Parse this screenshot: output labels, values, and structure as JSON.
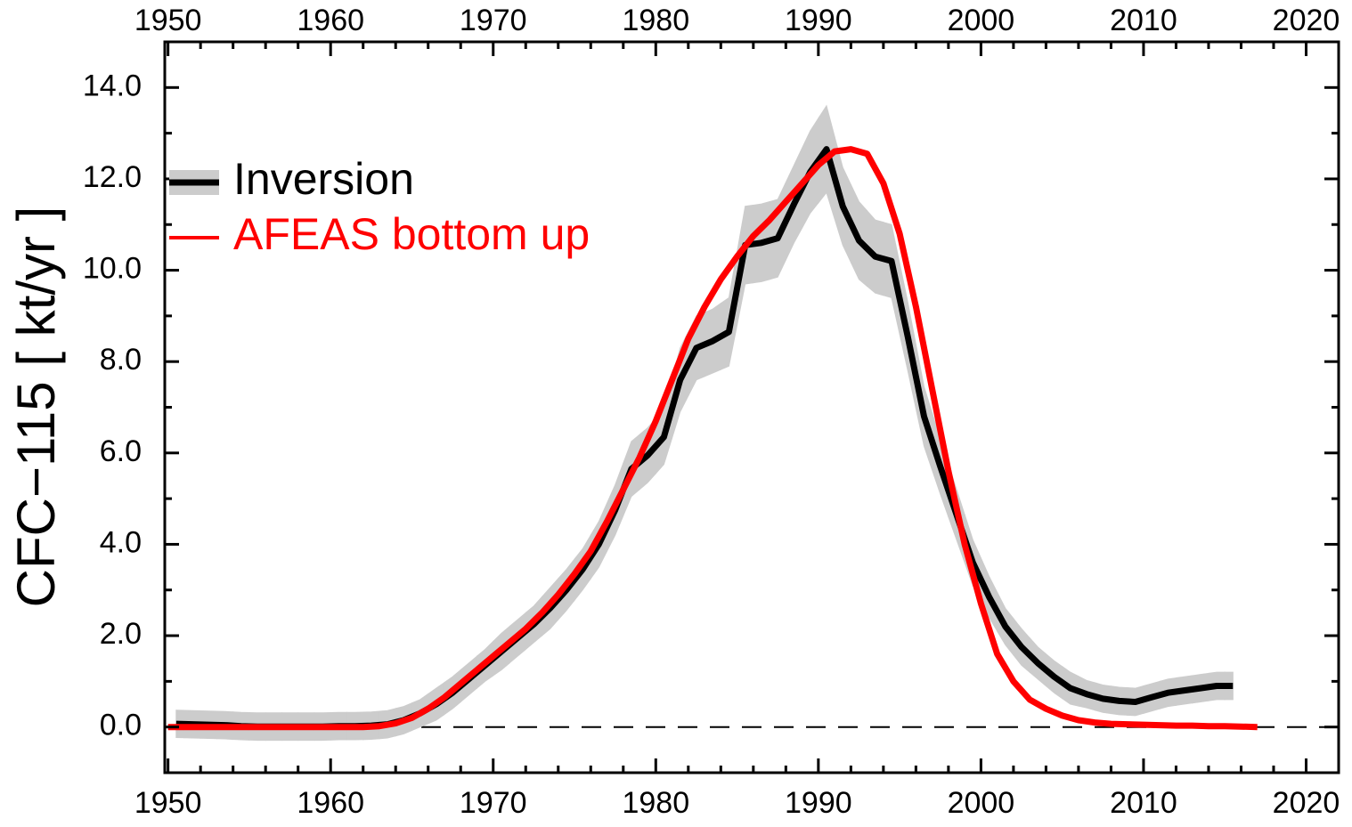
{
  "chart_data": {
    "type": "line",
    "ylabel": "CFC−115  [ kt/yr ]",
    "xlim": [
      1949.8,
      2022
    ],
    "ylim": [
      -1,
      15
    ],
    "xticks": [
      1950,
      1960,
      1970,
      1980,
      1990,
      2000,
      2010,
      2020
    ],
    "xticks_minor": [
      1952,
      1954,
      1956,
      1958,
      1962,
      1964,
      1966,
      1968,
      1972,
      1974,
      1976,
      1978,
      1982,
      1984,
      1986,
      1988,
      1992,
      1994,
      1996,
      1998,
      2002,
      2004,
      2006,
      2008,
      2012,
      2014,
      2016,
      2018
    ],
    "yticks": [
      {
        "value": 0,
        "label": "0.0"
      },
      {
        "value": 2,
        "label": "2.0"
      },
      {
        "value": 4,
        "label": "4.0"
      },
      {
        "value": 6,
        "label": "6.0"
      },
      {
        "value": 8,
        "label": "8.0"
      },
      {
        "value": 10,
        "label": "10.0"
      },
      {
        "value": 12,
        "label": "12.0"
      },
      {
        "value": 14,
        "label": "14.0"
      }
    ],
    "yticks_minor": [
      -1,
      1,
      3,
      5,
      7,
      9,
      11,
      13
    ],
    "hline": 0,
    "legend": "upper left",
    "series": [
      {
        "name": "Inversion",
        "color": "#000000",
        "band_color": "#cccccc",
        "x": [
          1950.5,
          1951.5,
          1952.5,
          1953.5,
          1954.5,
          1955.5,
          1956.5,
          1957.5,
          1958.5,
          1959.5,
          1960.5,
          1961.5,
          1962.5,
          1963.5,
          1964.5,
          1965.5,
          1966.5,
          1967.5,
          1968.5,
          1969.5,
          1970.5,
          1971.5,
          1972.5,
          1973.5,
          1974.5,
          1975.5,
          1976.5,
          1977.5,
          1978.5,
          1979.5,
          1980.5,
          1981.5,
          1982.5,
          1983.5,
          1984.5,
          1985.5,
          1986.5,
          1987.5,
          1988.5,
          1989.5,
          1990.5,
          1991.5,
          1992.5,
          1993.5,
          1994.5,
          1995.5,
          1996.5,
          1997.5,
          1998.5,
          1999.5,
          2000.5,
          2001.5,
          2002.5,
          2003.5,
          2004.5,
          2005.5,
          2006.5,
          2007.5,
          2008.5,
          2009.5,
          2010.5,
          2011.5,
          2012.5,
          2013.5,
          2014.5,
          2015.5
        ],
        "values": [
          0.07,
          0.06,
          0.05,
          0.04,
          0.02,
          0.01,
          0.01,
          0.01,
          0.01,
          0.01,
          0.02,
          0.02,
          0.03,
          0.06,
          0.15,
          0.3,
          0.5,
          0.75,
          1.05,
          1.35,
          1.65,
          1.95,
          2.25,
          2.6,
          3.0,
          3.45,
          4.0,
          4.75,
          5.65,
          5.95,
          6.35,
          7.6,
          8.3,
          8.45,
          8.65,
          10.55,
          10.6,
          10.7,
          11.45,
          12.15,
          12.65,
          11.4,
          10.65,
          10.3,
          10.2,
          8.55,
          6.8,
          5.7,
          4.65,
          3.6,
          2.85,
          2.2,
          1.75,
          1.4,
          1.1,
          0.85,
          0.72,
          0.62,
          0.57,
          0.55,
          0.65,
          0.75,
          0.8,
          0.85,
          0.9,
          0.9
        ],
        "errors": [
          0.3,
          0.3,
          0.3,
          0.3,
          0.3,
          0.3,
          0.3,
          0.3,
          0.3,
          0.3,
          0.3,
          0.3,
          0.3,
          0.3,
          0.3,
          0.3,
          0.35,
          0.35,
          0.35,
          0.35,
          0.4,
          0.4,
          0.4,
          0.45,
          0.45,
          0.45,
          0.5,
          0.55,
          0.6,
          0.6,
          0.6,
          0.7,
          0.7,
          0.7,
          0.75,
          0.85,
          0.85,
          0.85,
          0.85,
          0.9,
          0.95,
          0.85,
          0.85,
          0.8,
          0.8,
          0.75,
          0.65,
          0.6,
          0.55,
          0.5,
          0.45,
          0.4,
          0.4,
          0.35,
          0.35,
          0.35,
          0.3,
          0.3,
          0.3,
          0.3,
          0.3,
          0.3,
          0.3,
          0.3,
          0.3,
          0.3
        ]
      },
      {
        "name": "AFEAS bottom up",
        "color": "#ff0000",
        "x": [
          1950,
          1951,
          1952,
          1953,
          1954,
          1955,
          1956,
          1957,
          1958,
          1959,
          1960,
          1961,
          1962,
          1963,
          1964,
          1965,
          1966,
          1967,
          1968,
          1969,
          1970,
          1971,
          1972,
          1973,
          1974,
          1975,
          1976,
          1977,
          1978,
          1979,
          1980,
          1981,
          1982,
          1983,
          1984,
          1985,
          1986,
          1987,
          1988,
          1989,
          1990,
          1991,
          1992,
          1993,
          1994,
          1995,
          1996,
          1997,
          1998,
          1999,
          2000,
          2001,
          2002,
          2003,
          2004,
          2005,
          2006,
          2007,
          2008,
          2009,
          2010,
          2011,
          2012,
          2013,
          2014,
          2015,
          2016,
          2017
        ],
        "values": [
          0,
          0,
          0,
          0,
          0,
          0,
          0,
          0,
          0,
          0,
          0,
          0,
          0,
          0.02,
          0.08,
          0.2,
          0.4,
          0.65,
          0.95,
          1.25,
          1.55,
          1.85,
          2.15,
          2.5,
          2.9,
          3.35,
          3.85,
          4.5,
          5.2,
          5.9,
          6.7,
          7.6,
          8.5,
          9.2,
          9.8,
          10.3,
          10.75,
          11.1,
          11.5,
          11.9,
          12.3,
          12.6,
          12.65,
          12.55,
          11.9,
          10.8,
          9.2,
          7.4,
          5.6,
          4.0,
          2.7,
          1.6,
          1.0,
          0.6,
          0.4,
          0.25,
          0.15,
          0.1,
          0.07,
          0.06,
          0.05,
          0.04,
          0.03,
          0.03,
          0.02,
          0.02,
          0.01,
          0
        ]
      }
    ]
  }
}
